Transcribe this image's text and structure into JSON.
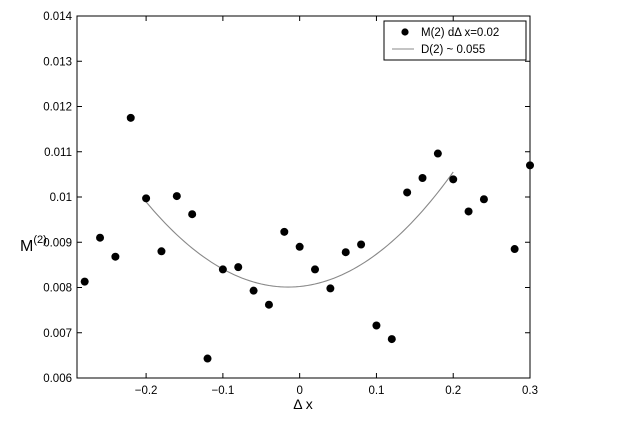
{
  "chart_data": {
    "type": "scatter",
    "xlabel": "Δ x",
    "ylabel": "M",
    "ylabel_superscript": "(2)",
    "xlim": [
      -0.29,
      0.3
    ],
    "ylim": [
      0.006,
      0.014
    ],
    "xticks": [
      -0.2,
      -0.1,
      0,
      0.1,
      0.2,
      0.3
    ],
    "xtick_labels": [
      "−0.2",
      "−0.1",
      "0",
      "0.1",
      "0.2",
      "0.3"
    ],
    "yticks": [
      0.006,
      0.007,
      0.008,
      0.009,
      0.01,
      0.011,
      0.012,
      0.013,
      0.014
    ],
    "ytick_labels": [
      "0.006",
      "0.007",
      "0.008",
      "0.009",
      "0.01",
      "0.011",
      "0.012",
      "0.013",
      "0.014"
    ],
    "grid": false,
    "legend_position": "top-right",
    "series": [
      {
        "name": "M(2)  dΔ x=0.02",
        "kind": "scatter",
        "color": "#000000",
        "points": [
          {
            "x": -0.28,
            "y": 0.00813
          },
          {
            "x": -0.26,
            "y": 0.0091
          },
          {
            "x": -0.24,
            "y": 0.00868
          },
          {
            "x": -0.22,
            "y": 0.01175
          },
          {
            "x": -0.2,
            "y": 0.00997
          },
          {
            "x": -0.18,
            "y": 0.0088
          },
          {
            "x": -0.16,
            "y": 0.01002
          },
          {
            "x": -0.14,
            "y": 0.00962
          },
          {
            "x": -0.12,
            "y": 0.00643
          },
          {
            "x": -0.1,
            "y": 0.0084
          },
          {
            "x": -0.08,
            "y": 0.00845
          },
          {
            "x": -0.06,
            "y": 0.00793
          },
          {
            "x": -0.04,
            "y": 0.00762
          },
          {
            "x": -0.02,
            "y": 0.00923
          },
          {
            "x": 0.0,
            "y": 0.0089
          },
          {
            "x": 0.02,
            "y": 0.0084
          },
          {
            "x": 0.04,
            "y": 0.00798
          },
          {
            "x": 0.06,
            "y": 0.00878
          },
          {
            "x": 0.08,
            "y": 0.00895
          },
          {
            "x": 0.1,
            "y": 0.00716
          },
          {
            "x": 0.12,
            "y": 0.00686
          },
          {
            "x": 0.14,
            "y": 0.0101
          },
          {
            "x": 0.16,
            "y": 0.01042
          },
          {
            "x": 0.18,
            "y": 0.01096
          },
          {
            "x": 0.2,
            "y": 0.01039
          },
          {
            "x": 0.22,
            "y": 0.00968
          },
          {
            "x": 0.24,
            "y": 0.00995
          },
          {
            "x": 0.28,
            "y": 0.00885
          },
          {
            "x": 0.3,
            "y": 0.0107
          }
        ]
      },
      {
        "name": "D(2) ~ 0.055",
        "kind": "line",
        "color": "#888888",
        "curve": {
          "x0": -0.015,
          "y0": 0.00801,
          "a": 0.055,
          "xmin": -0.2,
          "xmax": 0.2
        }
      }
    ]
  }
}
